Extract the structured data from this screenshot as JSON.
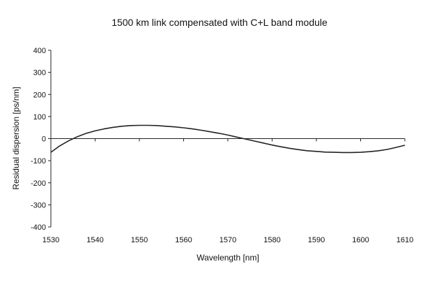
{
  "chart_data": {
    "type": "line",
    "title": "1500 km link compensated with C+L band module",
    "xlabel": "Wavelength [nm]",
    "ylabel": "Residual dispersion [ps/nm]",
    "xlim": [
      1530,
      1610
    ],
    "ylim": [
      -400,
      400
    ],
    "x_ticks": [
      1530,
      1540,
      1550,
      1560,
      1570,
      1580,
      1590,
      1600,
      1610
    ],
    "y_ticks": [
      400,
      300,
      200,
      100,
      0,
      -100,
      -200,
      -300,
      -400
    ],
    "grid": false,
    "legend": "none",
    "line_color": "#222222",
    "series": [
      {
        "x": [
          1530,
          1532,
          1534,
          1536,
          1538,
          1540,
          1542,
          1544,
          1546,
          1548,
          1550,
          1552,
          1554,
          1556,
          1558,
          1560,
          1562,
          1564,
          1566,
          1568,
          1570,
          1572,
          1574,
          1576,
          1578,
          1580,
          1582,
          1584,
          1586,
          1588,
          1590,
          1592,
          1594,
          1596,
          1598,
          1600,
          1602,
          1604,
          1606,
          1608,
          1610
        ],
        "y": [
          -62,
          -33,
          -10,
          9,
          24,
          35,
          44,
          51,
          56,
          59,
          60,
          60,
          59,
          56,
          53,
          49,
          44,
          38,
          31,
          24,
          16,
          7,
          -2,
          -11,
          -20,
          -29,
          -37,
          -44,
          -50,
          -55,
          -58,
          -61,
          -62,
          -63,
          -63,
          -62,
          -59,
          -55,
          -49,
          -40,
          -30
        ]
      }
    ]
  }
}
